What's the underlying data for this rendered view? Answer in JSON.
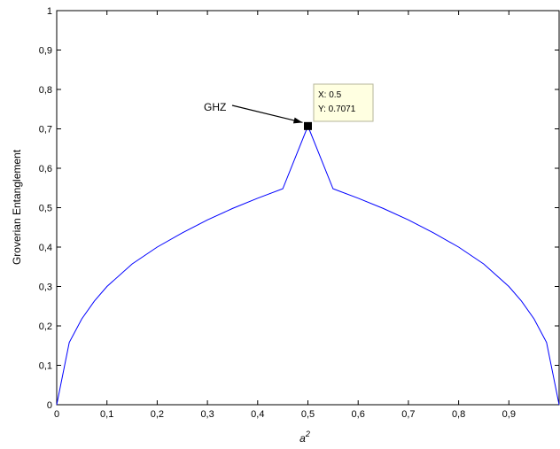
{
  "chart_data": {
    "type": "line",
    "xlabel": "a",
    "xlabel_superscript": "2",
    "ylabel": "Groverian Entanglement",
    "xlim": [
      0,
      1
    ],
    "ylim": [
      0,
      1
    ],
    "xticks": [
      0,
      0.1,
      0.2,
      0.3,
      0.4,
      0.5,
      0.6,
      0.7,
      0.8,
      0.9
    ],
    "xtick_labels": [
      "0",
      "0,1",
      "0,2",
      "0,3",
      "0,4",
      "0,5",
      "0,6",
      "0,7",
      "0,8",
      "0,9"
    ],
    "yticks": [
      0,
      0.1,
      0.2,
      0.3,
      0.4,
      0.5,
      0.6,
      0.7,
      0.8,
      0.9,
      1
    ],
    "ytick_labels": [
      "0",
      "0,1",
      "0,2",
      "0,3",
      "0,4",
      "0,5",
      "0,6",
      "0,7",
      "0,8",
      "0,9",
      "1"
    ],
    "grid": false,
    "series": [
      {
        "color": "#0000ff",
        "x": [
          0,
          0.025,
          0.05,
          0.075,
          0.1,
          0.15,
          0.2,
          0.25,
          0.3,
          0.35,
          0.4,
          0.45,
          0.5,
          0.55,
          0.6,
          0.65,
          0.7,
          0.75,
          0.8,
          0.85,
          0.9,
          0.925,
          0.95,
          0.975,
          1
        ],
        "y": [
          0,
          0.158,
          0.218,
          0.263,
          0.3,
          0.357,
          0.4,
          0.436,
          0.469,
          0.498,
          0.524,
          0.548,
          0.707,
          0.548,
          0.524,
          0.498,
          0.469,
          0.436,
          0.4,
          0.357,
          0.3,
          0.263,
          0.218,
          0.158,
          0
        ]
      }
    ],
    "datatip": {
      "x": 0.5,
      "y": 0.7071,
      "lines": [
        "X: 0.5",
        "Y: 0.7071"
      ]
    },
    "annotation": {
      "text": "GHZ",
      "arrow_to_x": 0.5,
      "arrow_to_y": 0.7071
    }
  }
}
